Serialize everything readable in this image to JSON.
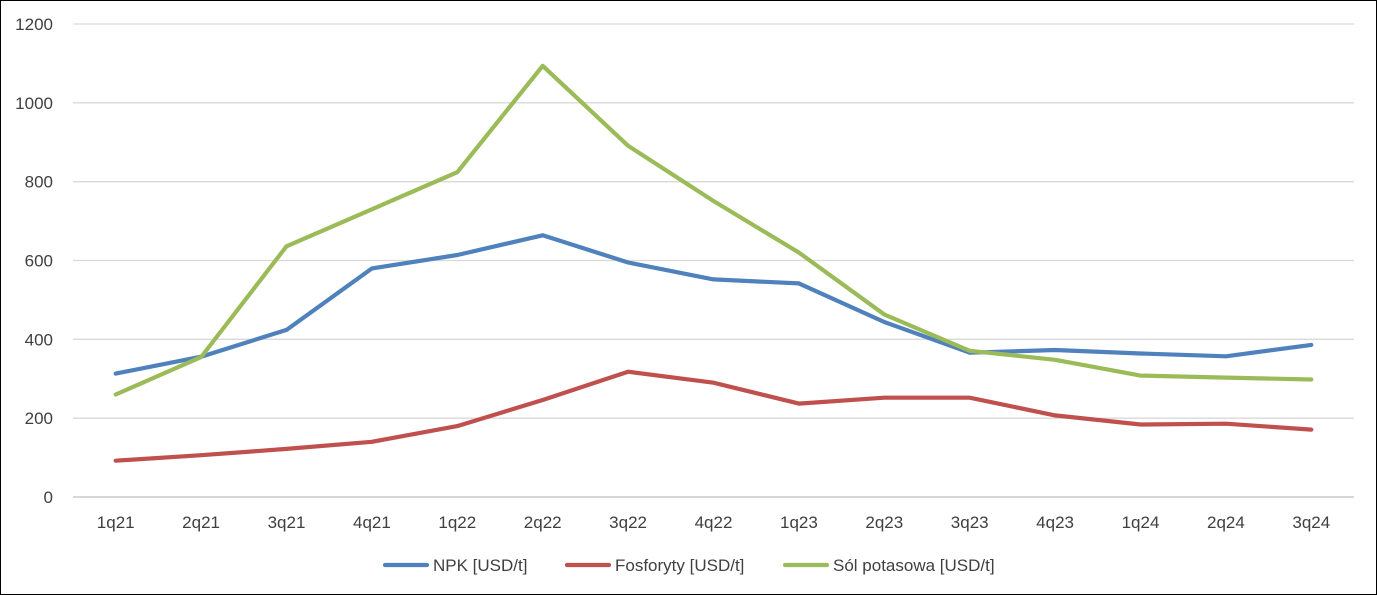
{
  "chart_data": {
    "type": "line",
    "title": "",
    "xlabel": "",
    "ylabel": "",
    "categories": [
      "1q21",
      "2q21",
      "3q21",
      "4q21",
      "1q22",
      "2q22",
      "3q22",
      "4q22",
      "1q23",
      "2q23",
      "3q23",
      "4q23",
      "1q24",
      "2q24",
      "3q24"
    ],
    "ylim": [
      0,
      1200
    ],
    "yticks": [
      0,
      200,
      400,
      600,
      800,
      1000,
      1200
    ],
    "ytick_labels": [
      "0",
      "200",
      "400",
      "600",
      "800",
      "1000",
      "1200"
    ],
    "grid": true,
    "legend_position": "bottom",
    "series": [
      {
        "name": "NPK  [USD/t]",
        "color": "#4F81BD",
        "values": [
          313,
          356,
          424,
          580,
          614,
          664,
          595,
          552,
          542,
          444,
          366,
          373,
          364,
          357,
          386
        ]
      },
      {
        "name": "Fosforyty [USD/t]",
        "color": "#C0504D",
        "values": [
          92,
          106,
          122,
          140,
          180,
          246,
          318,
          290,
          237,
          252,
          252,
          207,
          184,
          186,
          171
        ]
      },
      {
        "name": "Sól potasowa [USD/t]",
        "color": "#9BBB59",
        "values": [
          260,
          355,
          636,
          730,
          824,
          1094,
          891,
          751,
          620,
          463,
          371,
          348,
          308,
          303,
          298
        ]
      }
    ]
  }
}
